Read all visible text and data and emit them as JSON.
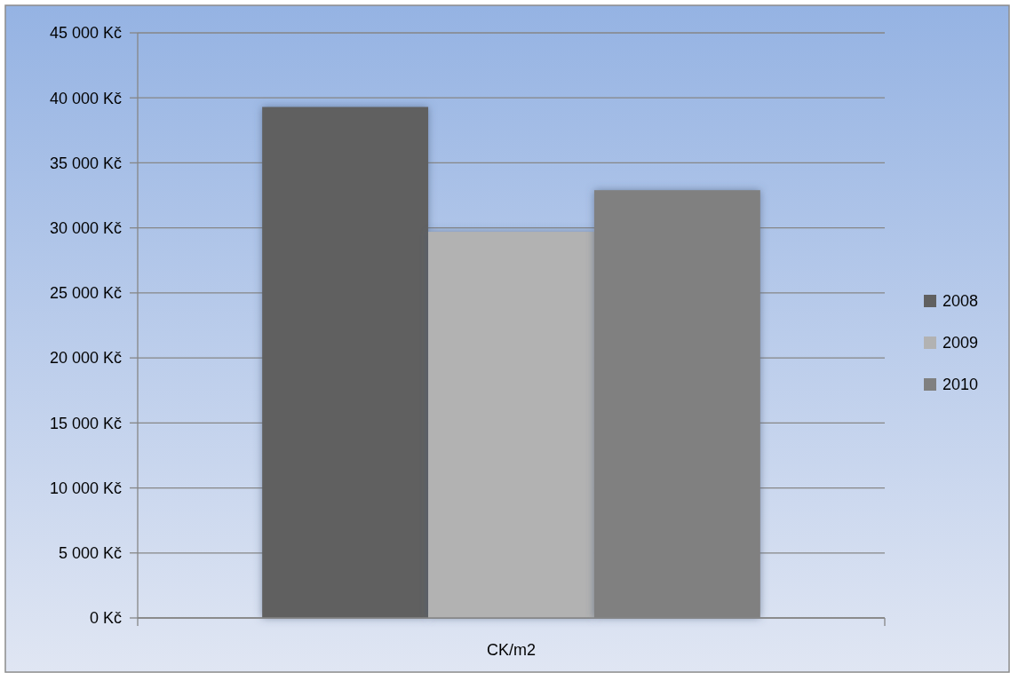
{
  "chart_data": {
    "type": "bar",
    "categories": [
      "CK/m2"
    ],
    "series": [
      {
        "name": "2008",
        "color": "#606060",
        "values": [
          39300
        ]
      },
      {
        "name": "2009",
        "color": "#b2b2b2",
        "values": [
          29700
        ]
      },
      {
        "name": "2010",
        "color": "#808080",
        "values": [
          32900
        ]
      }
    ],
    "ylim": [
      0,
      45000
    ],
    "yticks": [
      {
        "value": 0,
        "label": "0 Kč"
      },
      {
        "value": 5000,
        "label": "5 000 Kč"
      },
      {
        "value": 10000,
        "label": "10 000 Kč"
      },
      {
        "value": 15000,
        "label": "15 000 Kč"
      },
      {
        "value": 20000,
        "label": "20 000 Kč"
      },
      {
        "value": 25000,
        "label": "25 000 Kč"
      },
      {
        "value": 30000,
        "label": "30 000 Kč"
      },
      {
        "value": 35000,
        "label": "35 000 Kč"
      },
      {
        "value": 40000,
        "label": "40 000 Kč"
      },
      {
        "value": 45000,
        "label": "45 000 Kč"
      }
    ],
    "grid": "y",
    "legend": "right"
  }
}
